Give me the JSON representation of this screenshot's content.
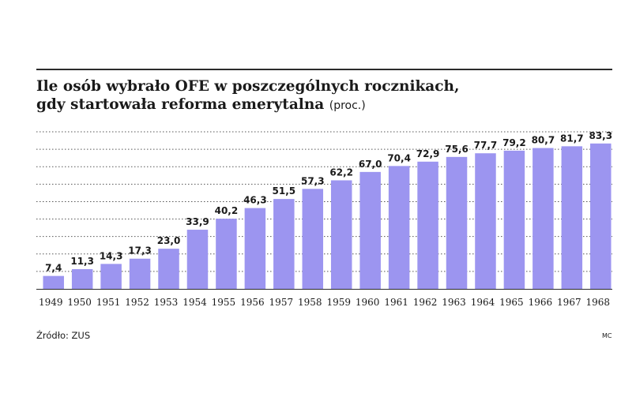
{
  "title_line1": "Ile osób wybrało OFE w poszczególnych rocznikach,",
  "title_line2": "gdy startowała reforma emerytalna",
  "title_unit": "(proc.)",
  "source": "Źródło: ZUS",
  "signature": "MC",
  "colors": {
    "bar": "#9c95f0",
    "grid": "#555555",
    "axis": "#2b2b2b",
    "text": "#1a1a1a"
  },
  "chart_data": {
    "type": "bar",
    "categories": [
      "1949",
      "1950",
      "1951",
      "1952",
      "1953",
      "1954",
      "1955",
      "1956",
      "1957",
      "1958",
      "1959",
      "1960",
      "1961",
      "1962",
      "1963",
      "1964",
      "1965",
      "1966",
      "1967",
      "1968"
    ],
    "values": [
      7.4,
      11.3,
      14.3,
      17.3,
      23.0,
      33.9,
      40.2,
      46.3,
      51.5,
      57.3,
      62.2,
      67.0,
      70.4,
      72.9,
      75.6,
      77.7,
      79.2,
      80.7,
      81.7,
      83.3
    ],
    "value_labels": [
      "7,4",
      "11,3",
      "14,3",
      "17,3",
      "23,0",
      "33,9",
      "40,2",
      "46,3",
      "51,5",
      "57,3",
      "62,2",
      "67,0",
      "70,4",
      "72,9",
      "75,6",
      "77,7",
      "79,2",
      "80,7",
      "81,7",
      "83,3"
    ],
    "ylim": [
      0,
      90
    ],
    "grid": true,
    "gridlines": 9,
    "legend": "none"
  }
}
